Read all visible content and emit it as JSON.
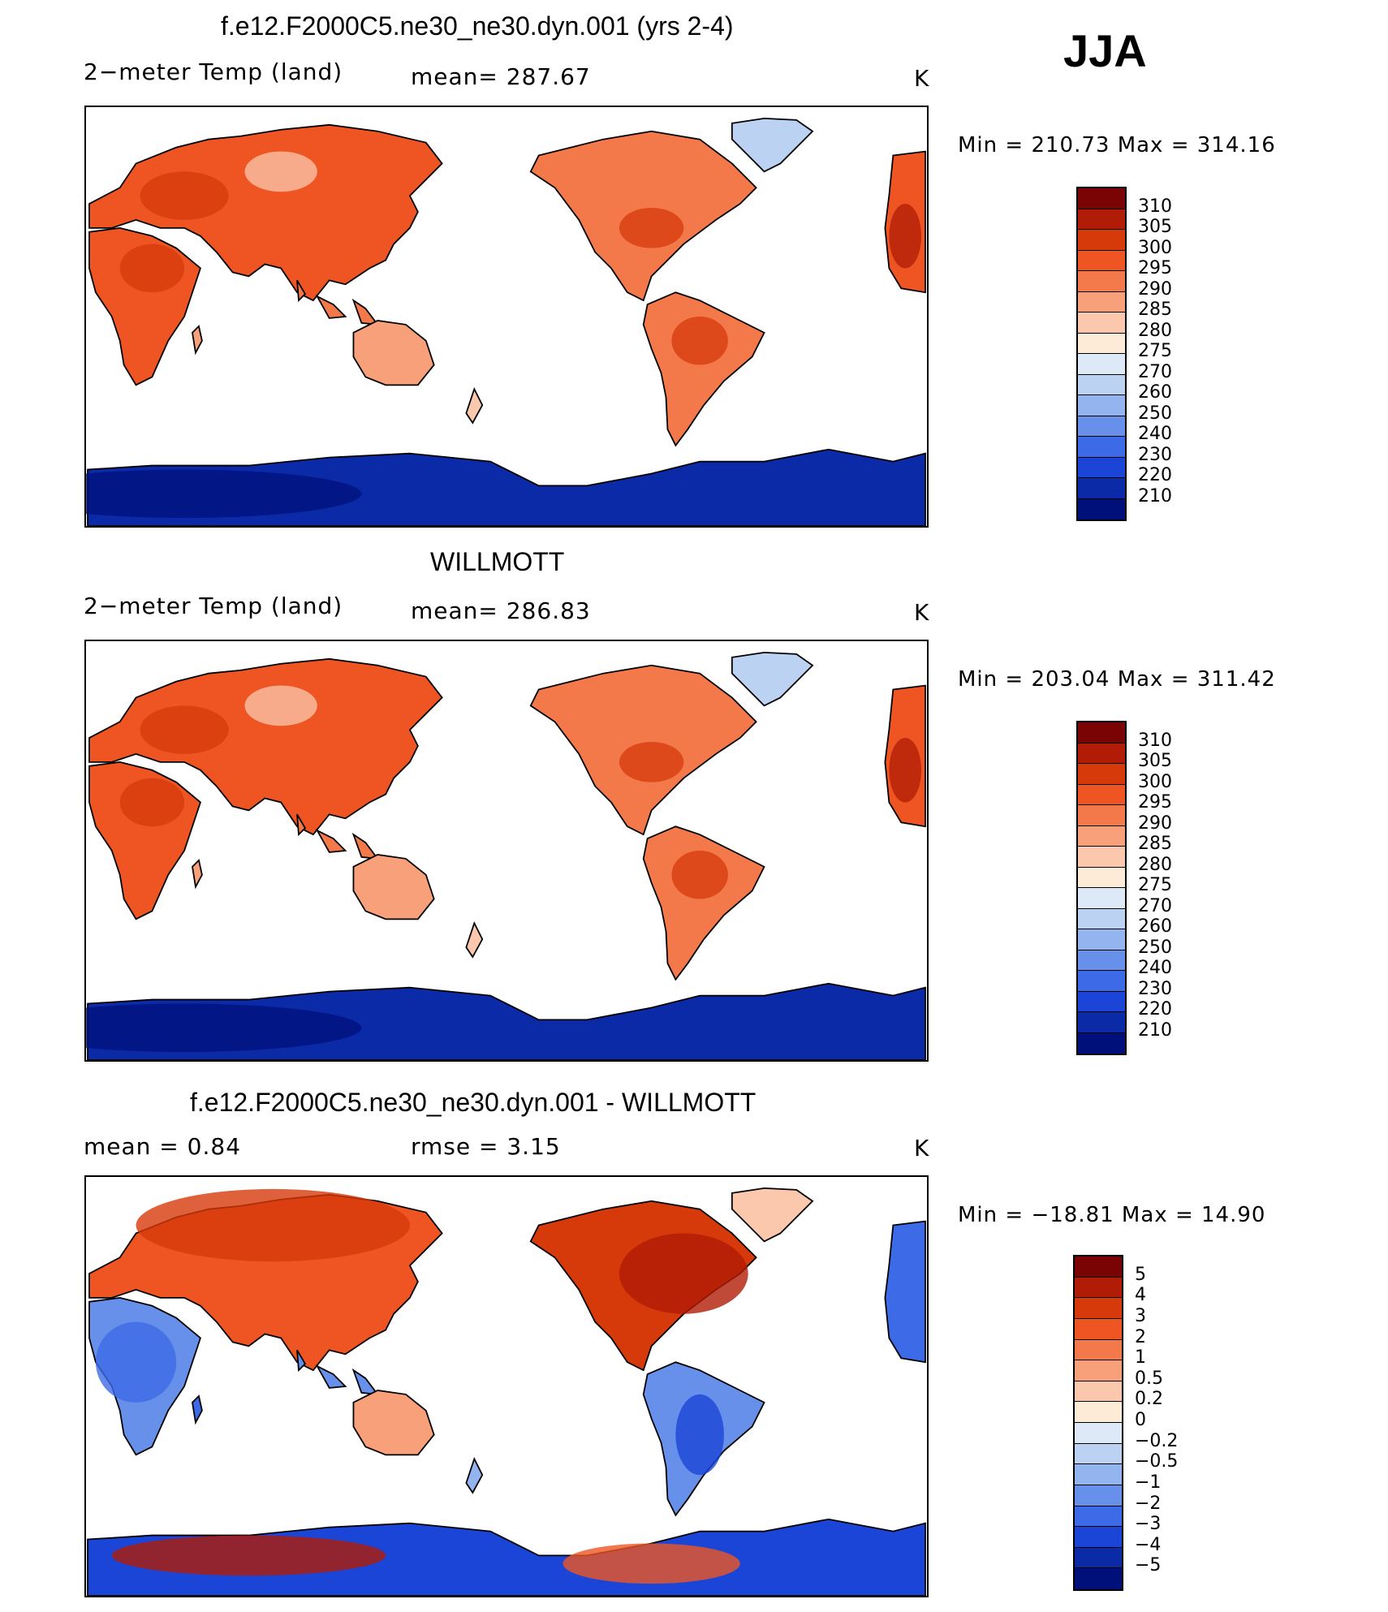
{
  "season": "JJA",
  "panels": [
    {
      "title": "f.e12.F2000C5.ne30_ne30.dyn.001 (yrs 2-4)",
      "left_label": "2−meter Temp (land)",
      "mid_label": "mean=  287.67",
      "units": "K",
      "minmax": "Min  =  210.73  Max  =  314.16",
      "palette": "abs",
      "levels": [
        "310",
        "305",
        "300",
        "295",
        "290",
        "285",
        "280",
        "275",
        "270",
        "260",
        "250",
        "240",
        "230",
        "220",
        "210"
      ]
    },
    {
      "title": "WILLMOTT",
      "left_label": "2−meter Temp (land)",
      "mid_label": "mean=  286.83",
      "units": "K",
      "minmax": "Min  =  203.04  Max  =  311.42",
      "palette": "abs",
      "levels": [
        "310",
        "305",
        "300",
        "295",
        "290",
        "285",
        "280",
        "275",
        "270",
        "260",
        "250",
        "240",
        "230",
        "220",
        "210"
      ]
    },
    {
      "title": "f.e12.F2000C5.ne30_ne30.dyn.001 - WILLMOTT",
      "left_label": "mean  =      0.84",
      "mid_label": "rmse  =      3.15",
      "units": "K",
      "minmax": "Min  =  −18.81  Max  =     14.90",
      "palette": "diff",
      "levels": [
        "5",
        "4",
        "3",
        "2",
        "1",
        "0.5",
        "0.2",
        "0",
        "−0.2",
        "−0.5",
        "−1",
        "−2",
        "−3",
        "−4",
        "−5"
      ]
    }
  ],
  "colors": {
    "scale": [
      "#7a0403",
      "#b01c05",
      "#d63a0b",
      "#ee5523",
      "#f4794a",
      "#f7a07a",
      "#fbc8ad",
      "#fdebd8",
      "#dde9f7",
      "#bcd2f2",
      "#93b4ee",
      "#6690ea",
      "#3d6ae6",
      "#1b45d6",
      "#0a2aa8",
      "#00107a"
    ]
  }
}
